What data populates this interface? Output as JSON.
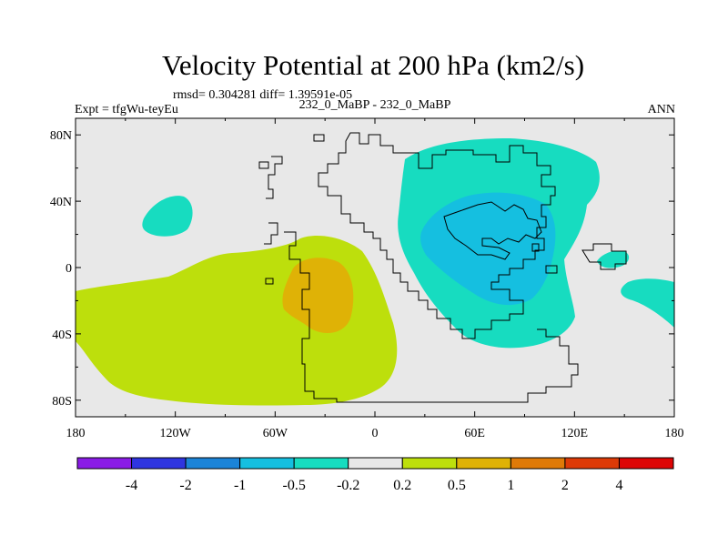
{
  "chart_data": {
    "type": "contour-map",
    "title": "Velocity Potential at 200 hPa (km2/s)",
    "stats_label": "rmsd= 0.304281  diff= 1.39591e-05",
    "left_label": "Expt = tfgWu-teyEu",
    "center_label": "232_0_MaBP - 232_0_MaBP",
    "right_label": "ANN",
    "x_ticks": [
      {
        "value": -180,
        "label": "180"
      },
      {
        "value": -120,
        "label": "120W"
      },
      {
        "value": -60,
        "label": "60W"
      },
      {
        "value": 0,
        "label": "0"
      },
      {
        "value": 60,
        "label": "60E"
      },
      {
        "value": 120,
        "label": "120E"
      },
      {
        "value": 180,
        "label": "180"
      }
    ],
    "y_ticks": [
      {
        "value": 80,
        "label": "80N"
      },
      {
        "value": 40,
        "label": "40N"
      },
      {
        "value": 0,
        "label": "0"
      },
      {
        "value": -40,
        "label": "40S"
      },
      {
        "value": -80,
        "label": "80S"
      }
    ],
    "xlim": [
      -180,
      180
    ],
    "ylim": [
      -90,
      90
    ],
    "colorbar": {
      "levels": [
        "-4",
        "-2",
        "-1",
        "-0.5",
        "-0.2",
        "0.2",
        "0.5",
        "1",
        "2",
        "4"
      ],
      "colors": [
        "#8a1be6",
        "#2f35e0",
        "#1b84d8",
        "#15bfe0",
        "#17dcc0",
        "#e8e8e8",
        "#bddf0c",
        "#dfb206",
        "#df7a08",
        "#dd3a07",
        "#dd0505"
      ]
    },
    "regions": [
      {
        "name": "positive-high",
        "level": "0.5 to 1",
        "color": "#dfb206",
        "lon_range": [
          -55,
          -15
        ],
        "lat_range": [
          -40,
          5
        ]
      },
      {
        "name": "positive-low",
        "level": "0.2 to 0.5",
        "color": "#bddf0c",
        "lon_range": [
          -180,
          15
        ],
        "lat_range": [
          -75,
          20
        ]
      },
      {
        "name": "negative-mid",
        "level": "-1 to -0.5",
        "color": "#15bfe0",
        "lon_range": [
          28,
          102
        ],
        "lat_range": [
          -22,
          45
        ]
      },
      {
        "name": "negative-low",
        "level": "-0.5 to -0.2",
        "color": "#17dcc0",
        "lon_range": [
          15,
          145
        ],
        "lat_range": [
          -48,
          78
        ]
      }
    ]
  }
}
